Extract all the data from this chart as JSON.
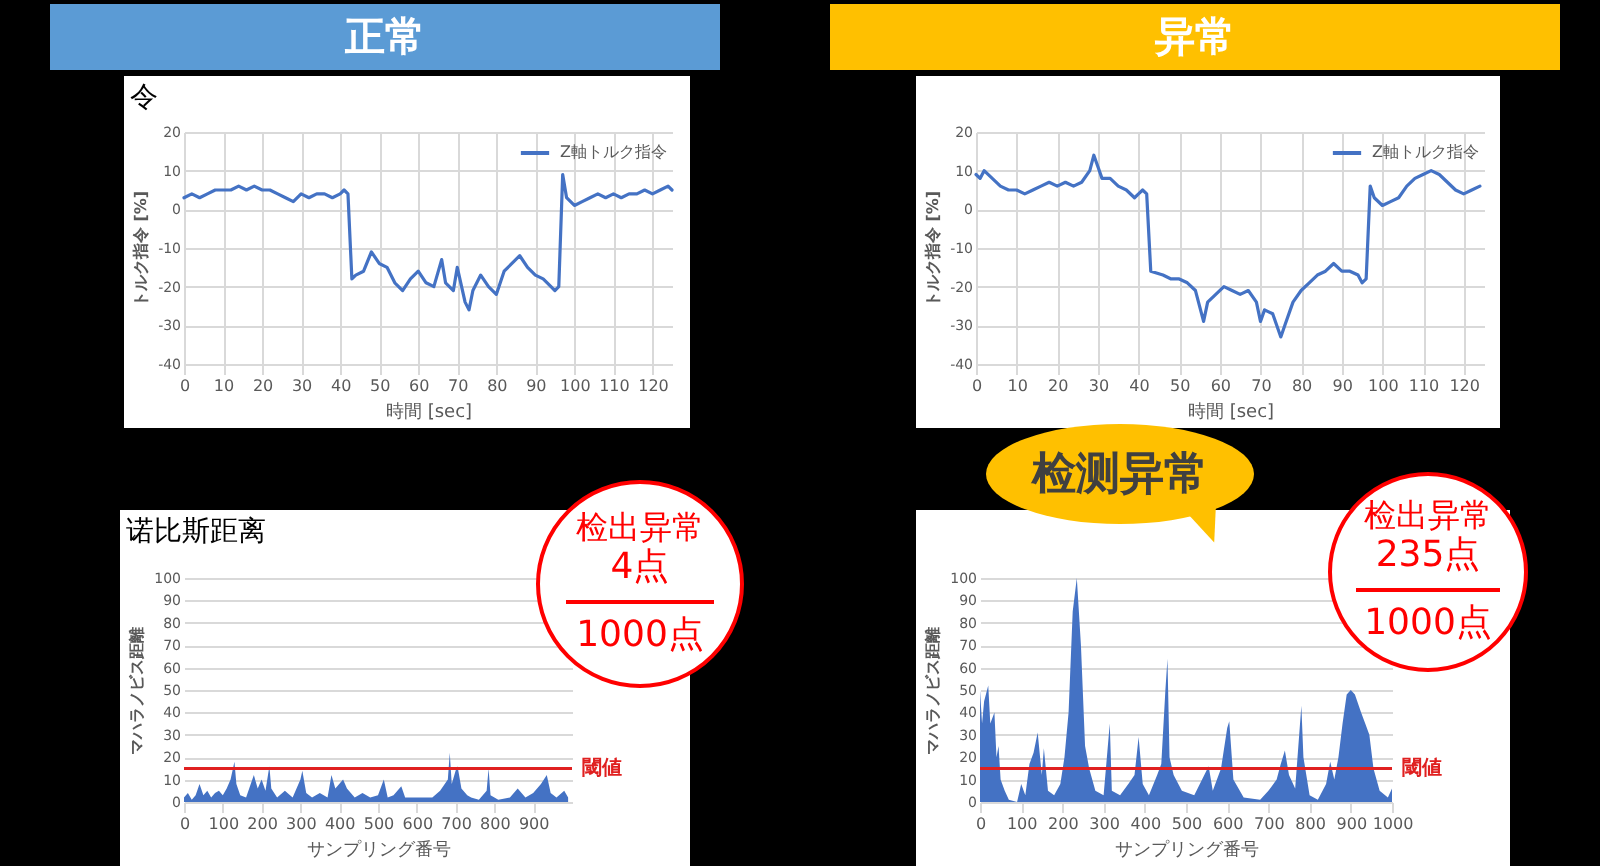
{
  "chart_data": [
    {
      "type": "line",
      "title": "正常",
      "xlabel": "時間 [sec]",
      "ylabel": "トルク指令 [%]",
      "annotations": [
        "令"
      ],
      "xlim": [
        0,
        125
      ],
      "xticks": [
        0,
        10,
        20,
        30,
        40,
        50,
        60,
        70,
        80,
        90,
        100,
        110,
        120
      ],
      "ylim": [
        -40,
        20
      ],
      "yticks": [
        -40,
        -30,
        -20,
        -10,
        0,
        10,
        20
      ],
      "grid": true,
      "legend": "top right",
      "series": [
        {
          "name": "Z軸トルク指令",
          "color": "#4472c4",
          "x": [
            0,
            2,
            4,
            6,
            8,
            10,
            12,
            14,
            16,
            18,
            20,
            22,
            24,
            26,
            28,
            30,
            32,
            34,
            36,
            38,
            40,
            41,
            42,
            43,
            44,
            46,
            48,
            50,
            52,
            54,
            56,
            58,
            60,
            62,
            64,
            66,
            67,
            69,
            70,
            72,
            73,
            74,
            76,
            78,
            80,
            82,
            84,
            86,
            88,
            90,
            92,
            94,
            95,
            96,
            97,
            98,
            100,
            102,
            104,
            106,
            108,
            110,
            112,
            114,
            116,
            118,
            120,
            122,
            124,
            125
          ],
          "values": [
            3,
            4,
            3,
            4,
            5,
            5,
            5,
            6,
            5,
            6,
            5,
            5,
            4,
            3,
            2,
            4,
            3,
            4,
            4,
            3,
            4,
            5,
            4,
            -18,
            -17,
            -16,
            -11,
            -14,
            -15,
            -19,
            -21,
            -18,
            -16,
            -19,
            -20,
            -13,
            -19,
            -21,
            -15,
            -24,
            -26,
            -21,
            -17,
            -20,
            -22,
            -16,
            -14,
            -12,
            -15,
            -17,
            -18,
            -20,
            -21,
            -20,
            9,
            3,
            1,
            2,
            3,
            4,
            3,
            4,
            3,
            4,
            4,
            5,
            4,
            5,
            6,
            5
          ]
        }
      ]
    },
    {
      "type": "line",
      "title": "异常",
      "xlabel": "時間 [sec]",
      "ylabel": "トルク指令 [%]",
      "xlim": [
        0,
        125
      ],
      "xticks": [
        0,
        10,
        20,
        30,
        40,
        50,
        60,
        70,
        80,
        90,
        100,
        110,
        120
      ],
      "ylim": [
        -40,
        20
      ],
      "yticks": [
        -40,
        -30,
        -20,
        -10,
        0,
        10,
        20
      ],
      "grid": true,
      "legend": "top right",
      "series": [
        {
          "name": "Z軸トルク指令",
          "color": "#4472c4",
          "x": [
            0,
            1,
            2,
            4,
            6,
            8,
            10,
            12,
            14,
            16,
            18,
            20,
            22,
            24,
            26,
            28,
            29,
            30,
            31,
            33,
            35,
            37,
            39,
            40,
            41,
            42,
            43,
            46,
            48,
            50,
            52,
            54,
            56,
            57,
            59,
            61,
            63,
            65,
            67,
            69,
            70,
            71,
            73,
            75,
            76,
            78,
            80,
            82,
            84,
            86,
            88,
            90,
            92,
            94,
            95,
            96,
            97,
            98,
            100,
            102,
            104,
            106,
            108,
            110,
            112,
            114,
            116,
            118,
            120,
            122,
            124
          ],
          "values": [
            9,
            8,
            10,
            8,
            6,
            5,
            5,
            4,
            5,
            6,
            7,
            6,
            7,
            6,
            7,
            10,
            14,
            11,
            8,
            8,
            6,
            5,
            3,
            4,
            5,
            4,
            -16,
            -17,
            -18,
            -18,
            -19,
            -21,
            -29,
            -24,
            -22,
            -20,
            -21,
            -22,
            -21,
            -24,
            -29,
            -26,
            -27,
            -33,
            -30,
            -24,
            -21,
            -19,
            -17,
            -16,
            -14,
            -16,
            -16,
            -17,
            -19,
            -18,
            6,
            3,
            1,
            2,
            3,
            6,
            8,
            9,
            10,
            9,
            7,
            5,
            4,
            5,
            6
          ]
        }
      ]
    },
    {
      "type": "area",
      "xlabel": "サンプリング番号",
      "ylabel": "マハラノビス距離",
      "annotations": [
        "诺比斯距离",
        "检出异常",
        "4点",
        "1000点"
      ],
      "xlim": [
        0,
        1000
      ],
      "xticks": [
        0,
        100,
        200,
        300,
        400,
        500,
        600,
        700,
        800,
        900
      ],
      "ylim": [
        0,
        100
      ],
      "yticks": [
        0,
        10,
        20,
        30,
        40,
        50,
        60,
        70,
        80,
        90,
        100
      ],
      "grid": "y",
      "ref_lines": [
        {
          "axis": "y",
          "value": 15,
          "label": "閾値",
          "color": "#e02020"
        }
      ],
      "series": [
        {
          "color": "#4472c4",
          "x": [
            0,
            10,
            20,
            30,
            40,
            50,
            60,
            70,
            80,
            90,
            100,
            110,
            120,
            130,
            135,
            145,
            160,
            180,
            190,
            200,
            210,
            220,
            225,
            240,
            260,
            280,
            300,
            305,
            315,
            330,
            350,
            370,
            380,
            390,
            400,
            410,
            420,
            440,
            460,
            480,
            500,
            515,
            525,
            540,
            560,
            570,
            600,
            640,
            660,
            680,
            685,
            690,
            700,
            705,
            715,
            730,
            740,
            760,
            780,
            785,
            790,
            810,
            840,
            860,
            880,
            900,
            920,
            935,
            945,
            960,
            980,
            990
          ],
          "values": [
            2,
            4,
            1,
            3,
            8,
            3,
            5,
            2,
            4,
            5,
            3,
            6,
            10,
            18,
            8,
            3,
            2,
            12,
            6,
            10,
            5,
            16,
            6,
            2,
            5,
            2,
            10,
            14,
            4,
            2,
            4,
            2,
            12,
            6,
            8,
            10,
            6,
            2,
            4,
            2,
            3,
            10,
            2,
            3,
            7,
            2,
            2,
            2,
            5,
            10,
            22,
            8,
            14,
            16,
            6,
            3,
            2,
            1,
            5,
            15,
            3,
            1,
            2,
            6,
            2,
            4,
            8,
            12,
            4,
            2,
            5,
            2
          ]
        }
      ]
    },
    {
      "type": "area",
      "xlabel": "サンプリング番号",
      "ylabel": "マハラノビス距離",
      "annotations": [
        "检测异常",
        "检出异常",
        "235点",
        "1000点"
      ],
      "xlim": [
        0,
        1000
      ],
      "xticks": [
        0,
        100,
        200,
        300,
        400,
        500,
        600,
        700,
        800,
        900,
        1000
      ],
      "ylim": [
        0,
        100
      ],
      "yticks": [
        0,
        10,
        20,
        30,
        40,
        50,
        60,
        70,
        80,
        90,
        100
      ],
      "grid": "y",
      "ref_lines": [
        {
          "axis": "y",
          "value": 15,
          "label": "閾値",
          "color": "#e02020"
        }
      ],
      "series": [
        {
          "color": "#4472c4",
          "x": [
            0,
            5,
            10,
            20,
            25,
            35,
            40,
            45,
            50,
            60,
            70,
            90,
            100,
            110,
            120,
            130,
            140,
            150,
            155,
            165,
            180,
            195,
            205,
            215,
            225,
            235,
            245,
            255,
            265,
            280,
            300,
            315,
            320,
            340,
            360,
            375,
            385,
            395,
            410,
            430,
            440,
            450,
            455,
            460,
            470,
            490,
            520,
            555,
            565,
            585,
            600,
            605,
            615,
            640,
            680,
            700,
            720,
            730,
            740,
            750,
            765,
            780,
            785,
            800,
            820,
            840,
            850,
            860,
            870,
            880,
            890,
            900,
            910,
            925,
            935,
            945,
            955,
            970,
            990,
            1000
          ],
          "values": [
            50,
            35,
            45,
            52,
            35,
            40,
            20,
            25,
            10,
            5,
            1,
            0,
            8,
            3,
            17,
            22,
            31,
            12,
            24,
            5,
            3,
            8,
            20,
            40,
            85,
            100,
            70,
            25,
            15,
            5,
            3,
            35,
            5,
            3,
            8,
            12,
            29,
            8,
            3,
            12,
            17,
            50,
            64,
            20,
            12,
            5,
            3,
            16,
            5,
            15,
            33,
            36,
            10,
            2,
            1,
            5,
            10,
            17,
            23,
            12,
            6,
            43,
            20,
            3,
            1,
            8,
            18,
            10,
            20,
            35,
            48,
            50,
            48,
            40,
            35,
            30,
            15,
            5,
            2,
            6
          ]
        }
      ]
    }
  ]
}
